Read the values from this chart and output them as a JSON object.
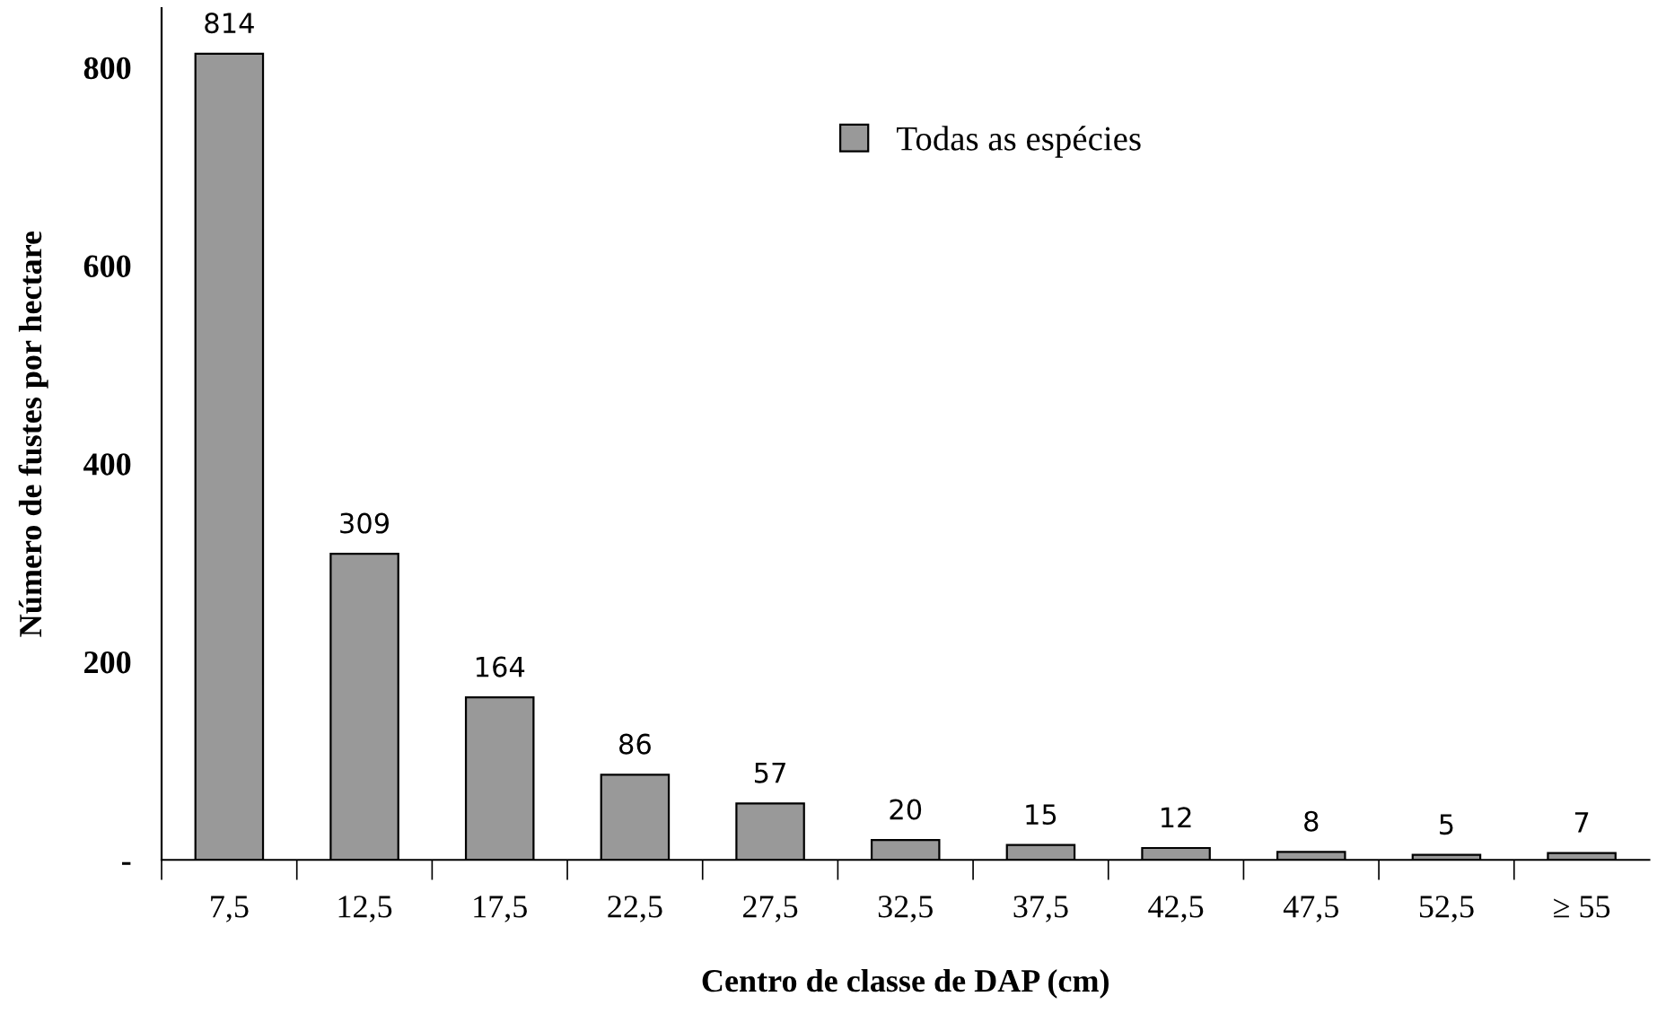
{
  "chart_data": {
    "type": "bar",
    "xlabel": "Centro de classe de DAP (cm)",
    "ylabel": "Número de fustes por hectare",
    "categories": [
      "7,5",
      "12,5",
      "17,5",
      "22,5",
      "27,5",
      "32,5",
      "37,5",
      "42,5",
      "47,5",
      "52,5",
      "≥ 55"
    ],
    "series": [
      {
        "name": "Todas as espécies",
        "color": "#999999",
        "values": [
          814,
          309,
          164,
          86,
          57,
          20,
          15,
          12,
          8,
          5,
          7
        ]
      }
    ],
    "data_labels": true,
    "ylim": [
      0,
      860
    ],
    "yticks": [
      {
        "value": 0,
        "label": "-"
      },
      200,
      400,
      600,
      800
    ],
    "grid": false,
    "legend": "top right"
  }
}
